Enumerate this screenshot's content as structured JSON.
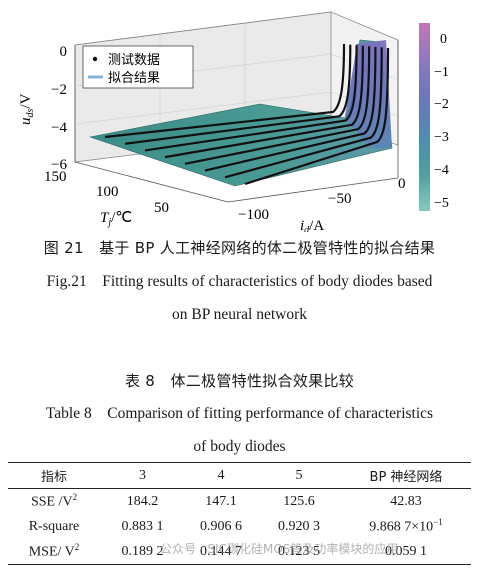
{
  "figure": {
    "caption_cn": "图 21　基于 BP 人工神经网络的体二极管特性的拟合结果",
    "caption_en_1": "Fig.21　Fitting results of characteristics of body diodes based",
    "caption_en_2": "on BP neural network",
    "legend": {
      "points": "测试数据",
      "fit": "拟合结果"
    },
    "z_axis": {
      "label_main": "u",
      "label_sub": "ds",
      "label_unit": "/V",
      "ticks": [
        "0",
        "−2",
        "−4",
        "−6"
      ]
    },
    "tj_axis": {
      "label_main": "T",
      "label_sub": "j",
      "label_unit": "/℃",
      "ticks": [
        "150",
        "100",
        "50"
      ]
    },
    "id_axis": {
      "label_main": "i",
      "label_sub": "d",
      "label_unit": "/A",
      "ticks": [
        "−100",
        "−50",
        "0"
      ]
    },
    "colorbar": {
      "ticks": [
        "0",
        "−1",
        "−2",
        "−3",
        "−4",
        "−5"
      ],
      "colors": [
        "#c476b4",
        "#8d79c1",
        "#6777b8",
        "#4f8eb0",
        "#4f9ea0",
        "#86c9bd"
      ]
    }
  },
  "table": {
    "title_cn": "表 8　体二极管特性拟合效果比较",
    "title_en_1": "Table 8　Comparison of fitting performance of characteristics",
    "title_en_2": "of body diodes",
    "headers": [
      "指标",
      "3",
      "4",
      "5",
      "BP 神经网络"
    ],
    "rows": [
      {
        "metric": "SSE /V",
        "metric_sup": "2",
        "values": [
          "184.2",
          "147.1",
          "125.6",
          "42.83"
        ]
      },
      {
        "metric": "R-square",
        "metric_sup": "",
        "values": [
          "0.883 1",
          "0.906 6",
          "0.920 3",
          "9.868 7×10"
        ],
        "bp_sup": "−1"
      },
      {
        "metric": "MSE/ V",
        "metric_sup": "2",
        "values": [
          "0.189 2",
          "0.144 7",
          "0.123 5",
          "0.059 1"
        ]
      }
    ]
  },
  "watermark": "公众号 · SIC碳化硅MOS管及功率模块的应用"
}
